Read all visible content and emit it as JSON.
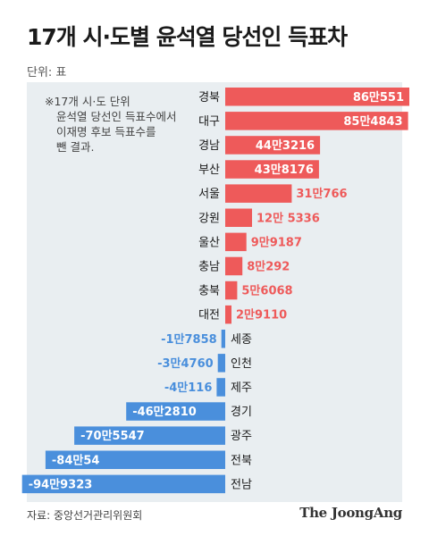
{
  "title": "17개 시·도별 윤석열 당선인 득표차",
  "unit": "단위: 표",
  "note": [
    "※17개 시·도 단위",
    "윤석열 당선인 득표수에서",
    "이재명 후보 득표수를",
    "뺀 결과."
  ],
  "source": "자료: 중앙선거관리위원회",
  "brand": "The JoongAng",
  "colors": {
    "positive": "#ee5a5a",
    "negative": "#4a8fdc",
    "panel": "#e9eef1"
  },
  "chart_data": {
    "type": "bar",
    "orientation": "horizontal",
    "categories": [
      "경북",
      "대구",
      "경남",
      "부산",
      "서울",
      "강원",
      "울산",
      "충남",
      "충북",
      "대전",
      "세종",
      "인천",
      "제주",
      "경기",
      "광주",
      "전북",
      "전남"
    ],
    "values": [
      860551,
      854843,
      443216,
      438176,
      310766,
      125336,
      99187,
      80292,
      56068,
      29110,
      -17858,
      -34760,
      -40116,
      -462810,
      -705547,
      -840054,
      -949323
    ],
    "value_labels": [
      "86만551",
      "85만4843",
      "44만3216",
      "43만8176",
      "31만766",
      "12만 5336",
      "9만9187",
      "8만292",
      "5만6068",
      "2만9110",
      "-1만7858",
      "-3만4760",
      "-4만116",
      "-46만2810",
      "-70만5547",
      "-84만54",
      "-94만9323"
    ]
  }
}
